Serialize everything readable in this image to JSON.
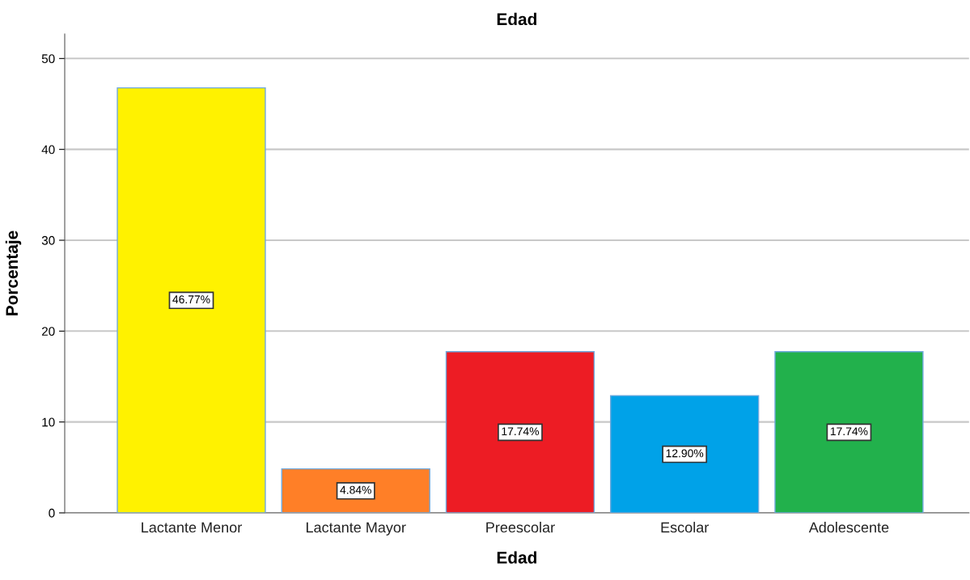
{
  "chart_data": {
    "type": "bar",
    "title": "Edad",
    "xlabel": "Edad",
    "ylabel": "Porcentaje",
    "categories": [
      "Lactante Menor",
      "Lactante Mayor",
      "Preescolar",
      "Escolar",
      "Adolescente"
    ],
    "values": [
      46.77,
      4.84,
      17.74,
      12.9,
      17.74
    ],
    "colors": [
      "#fff200",
      "#ff7f27",
      "#ed1c24",
      "#00a2e8",
      "#22b14c"
    ],
    "value_labels": [
      "46.77%",
      "4.84%",
      "17.74%",
      "12.90%",
      "17.74%"
    ],
    "ylim": [
      0,
      52.7
    ],
    "yticks": [
      0,
      10,
      20,
      30,
      40,
      50
    ],
    "grid": "y",
    "legend": false
  }
}
